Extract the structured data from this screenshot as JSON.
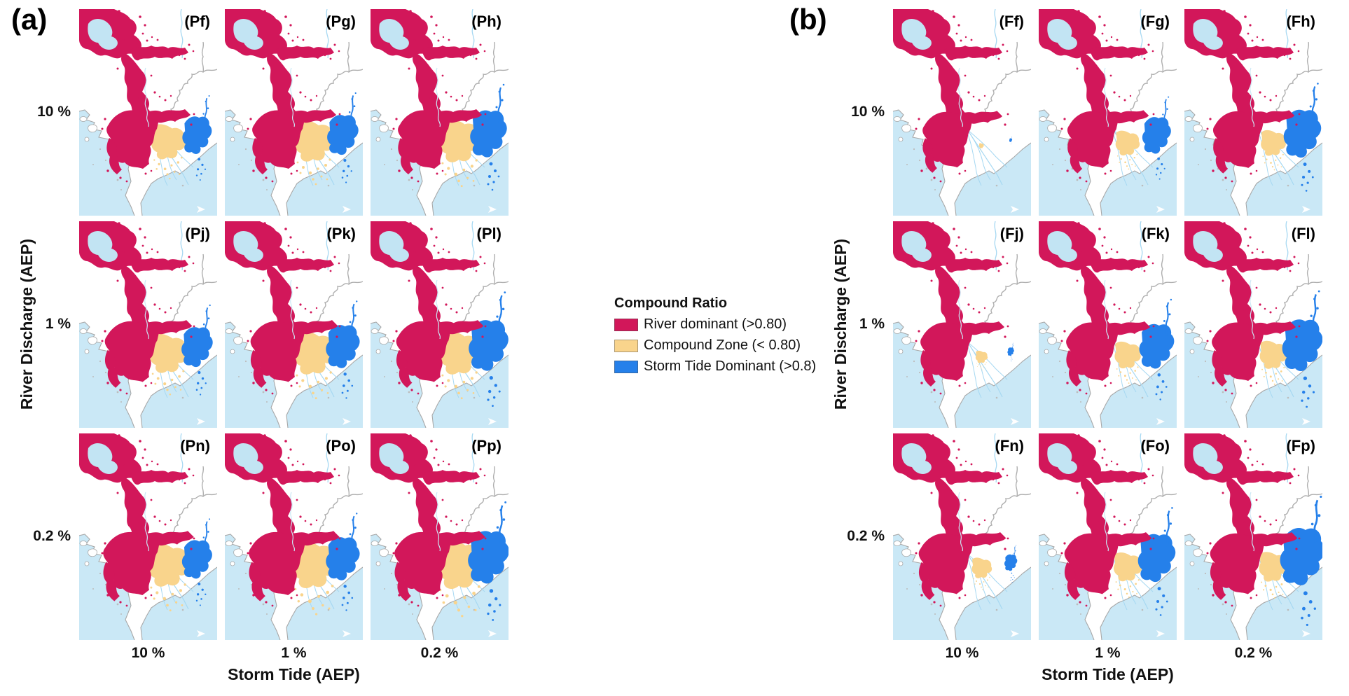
{
  "figure_type": "multi-panel coastal flood compound-ratio maps",
  "map_colors": {
    "land": "#FFFFFF",
    "sea": "#CAE8F6",
    "lake": "#C2E4F3",
    "coastline": "#A8A8A8",
    "river_line": "#A6D8F2",
    "admin_boundary": "#AFAFAF",
    "river_dominant": "#D2175A",
    "compound_zone": "#F9D48C",
    "storm_tide_dominant": "#2580EA"
  },
  "legend": {
    "title": "Compound Ratio",
    "items": [
      {
        "name": "river-dominant",
        "label": "River dominant (>0.80)",
        "color": "#D2175A"
      },
      {
        "name": "compound-zone",
        "label": "Compound Zone (< 0.80)",
        "color": "#F9D48C"
      },
      {
        "name": "storm-tide-dominant",
        "label": "Storm Tide Dominant (>0.8)",
        "color": "#2580EA"
      }
    ]
  },
  "panels": [
    {
      "label": "(a)",
      "y_axis": {
        "label": "River Discharge (AEP)",
        "ticks": [
          "10 %",
          "1 %",
          "0.2 %"
        ]
      },
      "x_axis": {
        "label": "Storm Tide (AEP)",
        "ticks": [
          "10 %",
          "1 %",
          "0.2 %"
        ]
      },
      "cells": [
        {
          "label": "(Pf)",
          "compound": 0.85,
          "storm": 0.8,
          "river": 1.0
        },
        {
          "label": "(Pg)",
          "compound": 1.0,
          "storm": 0.85,
          "river": 1.0
        },
        {
          "label": "(Ph)",
          "compound": 1.05,
          "storm": 1.0,
          "river": 1.0
        },
        {
          "label": "(Pj)",
          "compound": 0.95,
          "storm": 0.85,
          "river": 1.04
        },
        {
          "label": "(Pk)",
          "compound": 1.05,
          "storm": 0.92,
          "river": 1.04
        },
        {
          "label": "(Pl)",
          "compound": 1.05,
          "storm": 1.08,
          "river": 1.04
        },
        {
          "label": "(Pn)",
          "compound": 1.05,
          "storm": 0.82,
          "river": 1.08
        },
        {
          "label": "(Po)",
          "compound": 1.15,
          "storm": 0.92,
          "river": 1.08
        },
        {
          "label": "(Pp)",
          "compound": 1.2,
          "storm": 1.12,
          "river": 1.08
        }
      ]
    },
    {
      "label": "(b)",
      "y_axis": {
        "label": "River Discharge (AEP)",
        "ticks": [
          "10 %",
          "1 %",
          "0.2 %"
        ]
      },
      "x_axis": {
        "label": "Storm Tide (AEP)",
        "ticks": [
          "10 %",
          "1 %",
          "0.2 %"
        ]
      },
      "cells": [
        {
          "label": "(Ff)",
          "compound": 0.12,
          "storm": 0.08,
          "river": 0.95
        },
        {
          "label": "(Fg)",
          "compound": 0.6,
          "storm": 0.78,
          "river": 0.97
        },
        {
          "label": "(Fh)",
          "compound": 0.62,
          "storm": 1.02,
          "river": 0.97
        },
        {
          "label": "(Fj)",
          "compound": 0.3,
          "storm": 0.18,
          "river": 1.0
        },
        {
          "label": "(Fk)",
          "compound": 0.65,
          "storm": 0.95,
          "river": 1.0
        },
        {
          "label": "(Fl)",
          "compound": 0.68,
          "storm": 1.1,
          "river": 1.0
        },
        {
          "label": "(Fn)",
          "compound": 0.5,
          "storm": 0.35,
          "river": 1.04
        },
        {
          "label": "(Fo)",
          "compound": 0.7,
          "storm": 1.02,
          "river": 1.04
        },
        {
          "label": "(Fp)",
          "compound": 0.72,
          "storm": 1.22,
          "river": 1.04
        }
      ]
    }
  ]
}
